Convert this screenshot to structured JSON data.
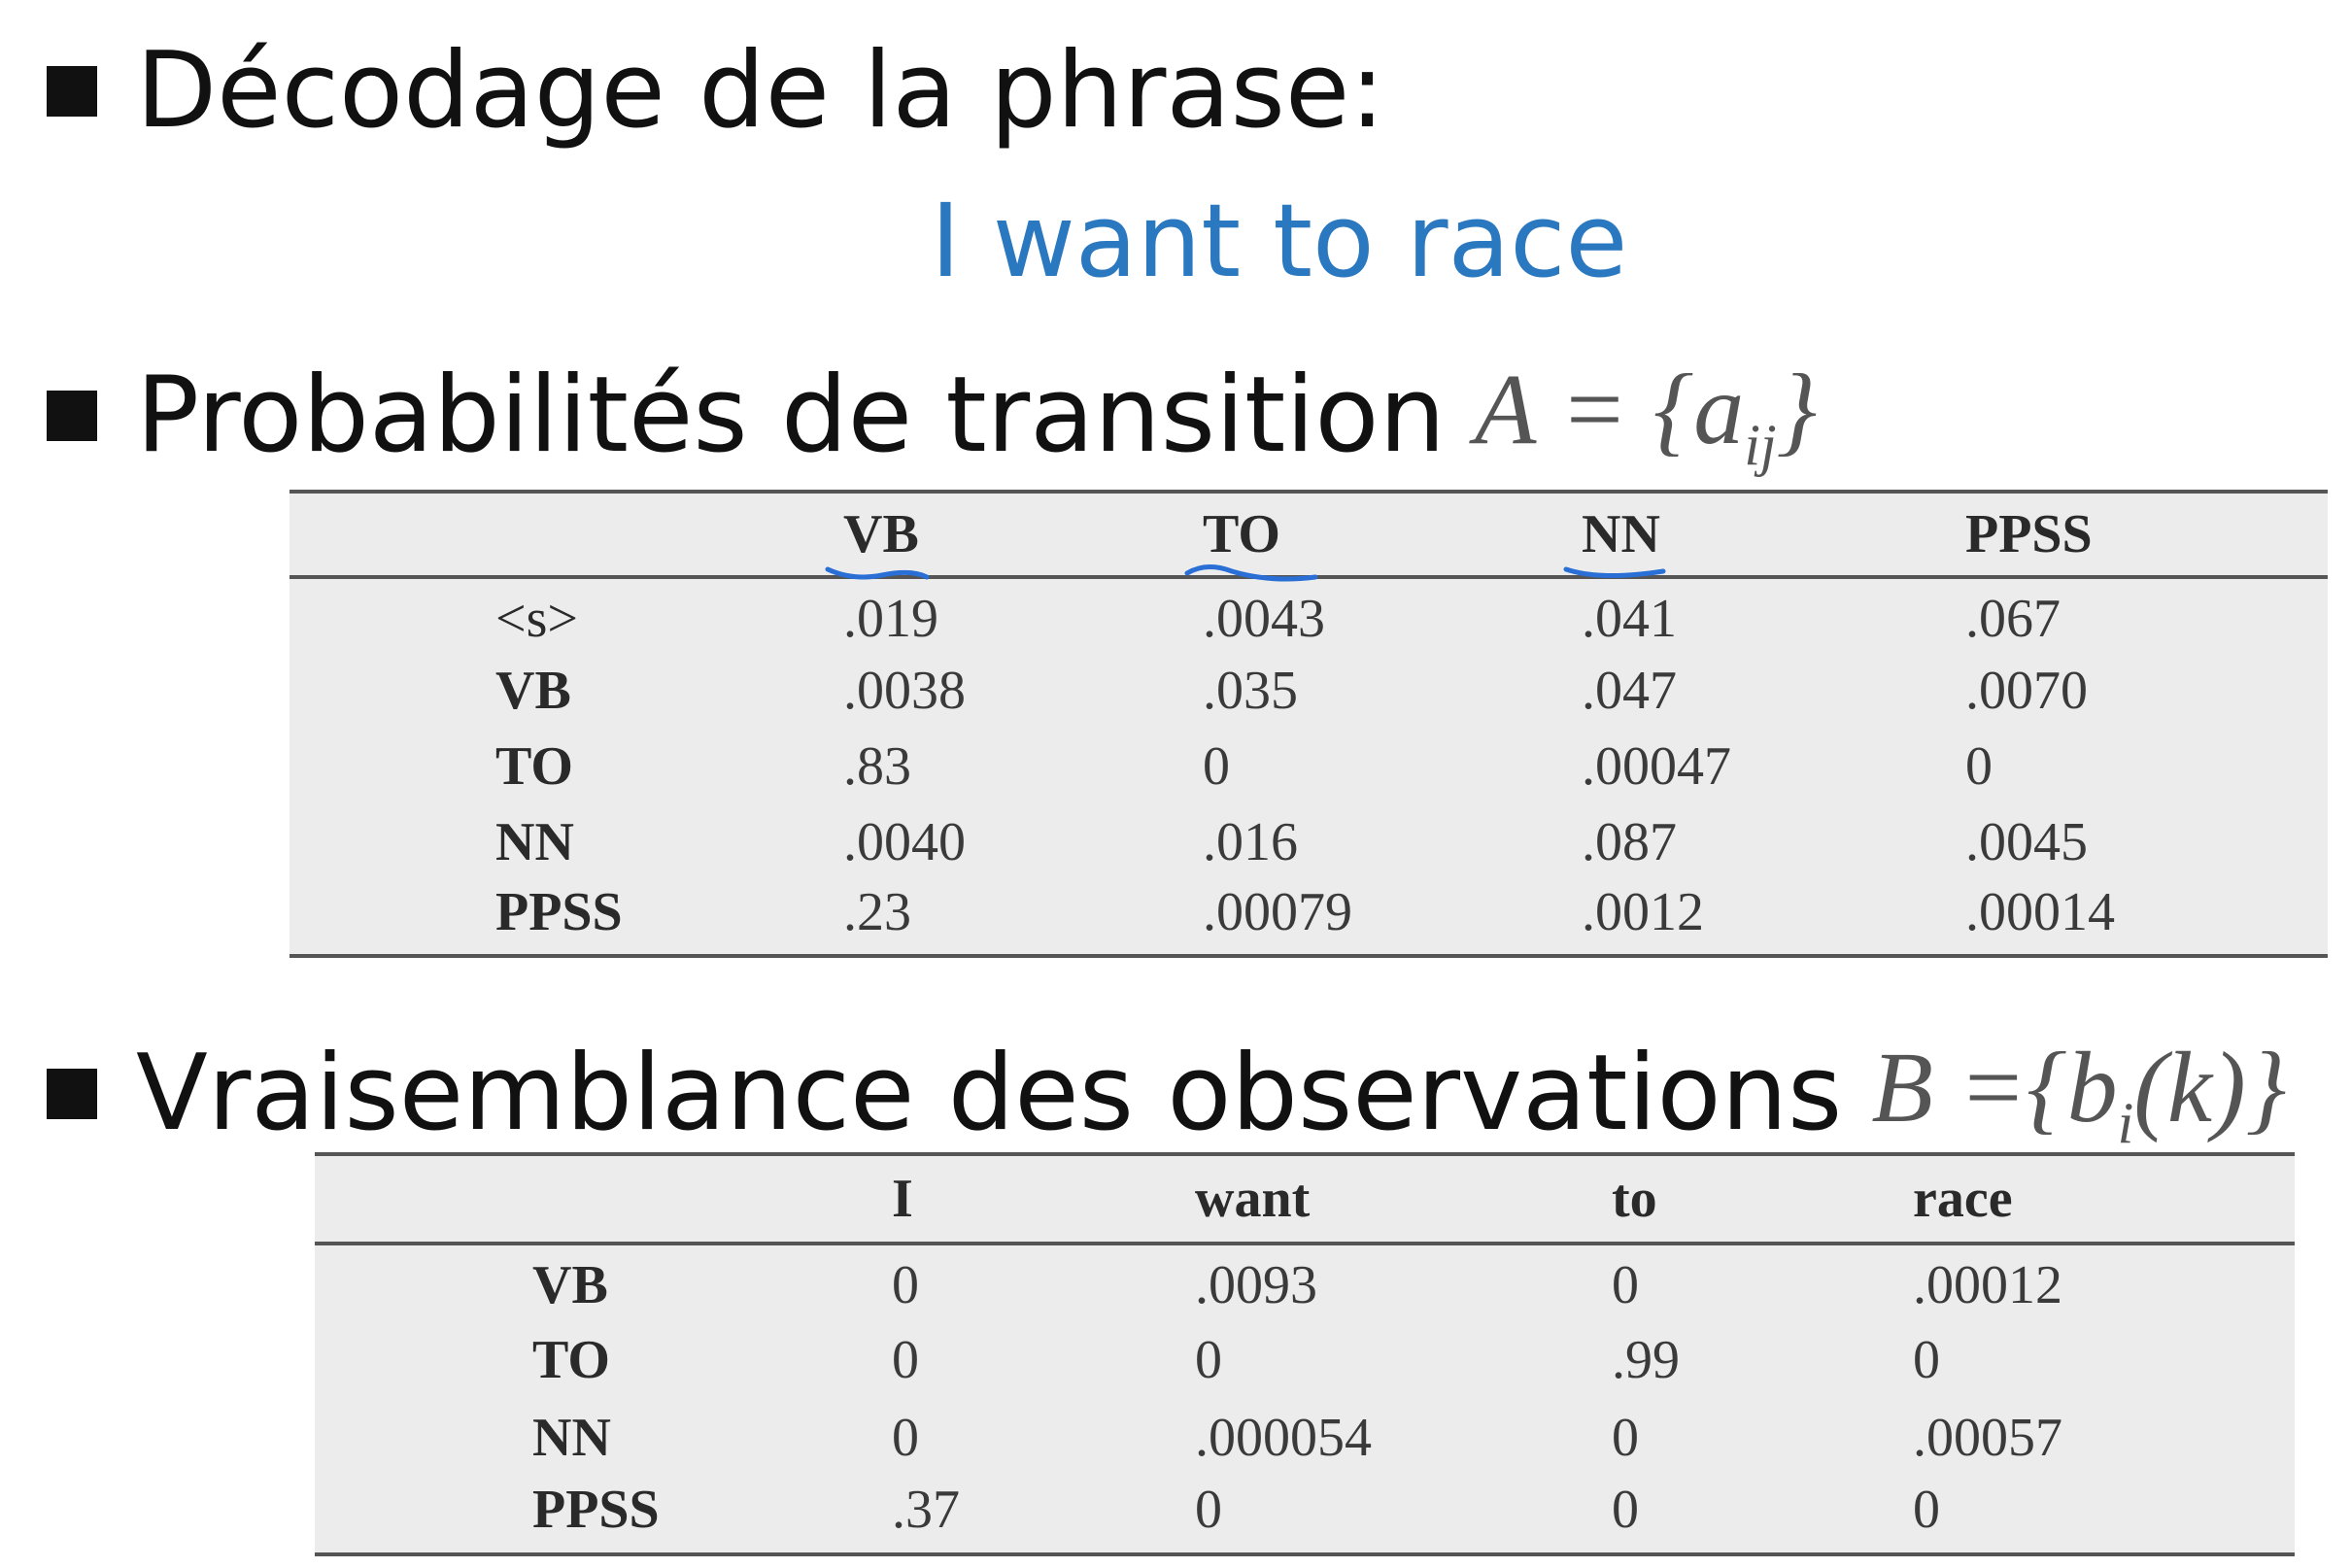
{
  "slide": {
    "heading_decoding": "Décodage de la phrase:",
    "sentence": "I want to race",
    "heading_transition": "Probabilités de transition",
    "transition_math": "A = {a",
    "transition_math_sub": "ij",
    "transition_math_close": "}",
    "heading_observation": "Vraisemblance des observations",
    "observation_math": "B ={b",
    "observation_math_sub": "i",
    "observation_math_close": "(k)}"
  },
  "colors": {
    "sentence": "#2a78c0",
    "annotation": "#2a6fd6",
    "table_bg": "#ececec"
  },
  "transition_table": {
    "headers": [
      "",
      "VB",
      "TO",
      "NN",
      "PPSS"
    ],
    "rows": [
      {
        "label": "<s>",
        "values": [
          ".019",
          ".0043",
          ".041",
          ".067"
        ]
      },
      {
        "label": "VB",
        "values": [
          ".0038",
          ".035",
          ".047",
          ".0070"
        ]
      },
      {
        "label": "TO",
        "values": [
          ".83",
          "0",
          ".00047",
          "0"
        ]
      },
      {
        "label": "NN",
        "values": [
          ".0040",
          ".016",
          ".087",
          ".0045"
        ]
      },
      {
        "label": "PPSS",
        "values": [
          ".23",
          ".00079",
          ".0012",
          ".00014"
        ]
      }
    ]
  },
  "observation_table": {
    "headers": [
      "",
      "I",
      "want",
      "to",
      "race"
    ],
    "rows": [
      {
        "label": "VB",
        "values": [
          "0",
          ".0093",
          "0",
          ".00012"
        ]
      },
      {
        "label": "TO",
        "values": [
          "0",
          "0",
          ".99",
          "0"
        ]
      },
      {
        "label": "NN",
        "values": [
          "0",
          ".000054",
          "0",
          ".00057"
        ]
      },
      {
        "label": "PPSS",
        "values": [
          ".37",
          "0",
          "0",
          "0"
        ]
      }
    ]
  }
}
